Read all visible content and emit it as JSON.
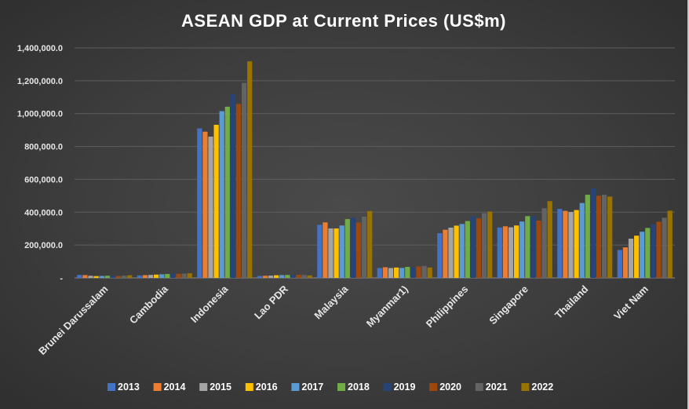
{
  "chart_data": {
    "type": "bar",
    "title": "ASEAN GDP at Current Prices (US$m)",
    "xlabel": "",
    "ylabel": "",
    "ylim": [
      0,
      1400000
    ],
    "y_ticks": [
      "-",
      "200,000.0",
      "400,000.0",
      "600,000.0",
      "800,000.0",
      "1,000,000.0",
      "1,200,000.0",
      "1,400,000.0"
    ],
    "grid": true,
    "legend_position": "bottom",
    "categories": [
      "Brunei Darussalam",
      "Cambodia",
      "Indonesia",
      "Lao PDR",
      "Malaysia",
      "Myanmar1)",
      "Philippines",
      "Singapore",
      "Thailand",
      "Viet Nam"
    ],
    "series": [
      {
        "name": "2013",
        "color": "#4472c4",
        "values": [
          18000,
          15000,
          910000,
          12000,
          323000,
          60000,
          272000,
          307000,
          420000,
          170000
        ]
      },
      {
        "name": "2014",
        "color": "#ed7d31",
        "values": [
          17000,
          17000,
          890000,
          13000,
          338000,
          65000,
          293000,
          314000,
          408000,
          186000
        ]
      },
      {
        "name": "2015",
        "color": "#a5a5a5",
        "values": [
          13000,
          18000,
          860000,
          14000,
          301000,
          60000,
          306000,
          308000,
          401000,
          239000
        ]
      },
      {
        "name": "2016",
        "color": "#ffc000",
        "values": [
          11000,
          20000,
          932000,
          16000,
          301000,
          63000,
          318000,
          319000,
          413000,
          257000
        ]
      },
      {
        "name": "2017",
        "color": "#5b9bd5",
        "values": [
          12000,
          22000,
          1015000,
          17000,
          319000,
          61000,
          328000,
          343000,
          456000,
          281000
        ]
      },
      {
        "name": "2018",
        "color": "#70ad47",
        "values": [
          13000,
          24000,
          1042000,
          18000,
          358000,
          67000,
          346000,
          376000,
          506000,
          304000
        ]
      },
      {
        "name": "2019",
        "color": "#264478",
        "values": [
          13000,
          27000,
          1119000,
          18000,
          365000,
          66000,
          376000,
          375000,
          544000,
          327000
        ]
      },
      {
        "name": "2020",
        "color": "#9e480e",
        "values": [
          12000,
          25000,
          1059000,
          19000,
          337000,
          70000,
          362000,
          349000,
          500000,
          342000
        ]
      },
      {
        "name": "2021",
        "color": "#636363",
        "values": [
          14000,
          26000,
          1187000,
          18000,
          373000,
          73000,
          394000,
          424000,
          506000,
          366000
        ]
      },
      {
        "name": "2022",
        "color": "#997300",
        "values": [
          16000,
          28000,
          1318000,
          15000,
          407000,
          63000,
          404000,
          467000,
          495000,
          409000
        ]
      }
    ]
  }
}
